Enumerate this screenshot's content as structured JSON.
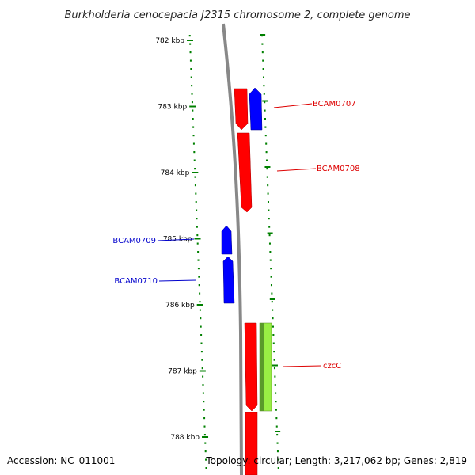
{
  "title": "Burkholderia cenocepacia J2315 chromosome 2, complete genome",
  "footer": {
    "accession": "Accession: NC_011001",
    "topology": "Topology: circular; Length: 3,217,062 bp; Genes: 2,819"
  },
  "colors": {
    "forward_gene": "#ff0000",
    "reverse_gene": "#0000ff",
    "cog_gene": "#99ee44",
    "tick": "#008000",
    "backbone": "#888888",
    "label_forward": "#dd0000",
    "label_reverse": "#0000cc"
  },
  "ticks": [
    {
      "label": "782 kbp",
      "position_kbp": 782
    },
    {
      "label": "783 kbp",
      "position_kbp": 783
    },
    {
      "label": "784 kbp",
      "position_kbp": 784
    },
    {
      "label": "785 kbp",
      "position_kbp": 785
    },
    {
      "label": "786 kbp",
      "position_kbp": 786
    },
    {
      "label": "787 kbp",
      "position_kbp": 787
    },
    {
      "label": "788 kbp",
      "position_kbp": 788
    }
  ],
  "genes": [
    {
      "label": "BCAM0707",
      "strand": "forward"
    },
    {
      "label": "BCAM0708",
      "strand": "forward"
    },
    {
      "label": "BCAM0709",
      "strand": "reverse"
    },
    {
      "label": "BCAM0710",
      "strand": "reverse"
    },
    {
      "label": "czcC",
      "strand": "forward"
    }
  ]
}
